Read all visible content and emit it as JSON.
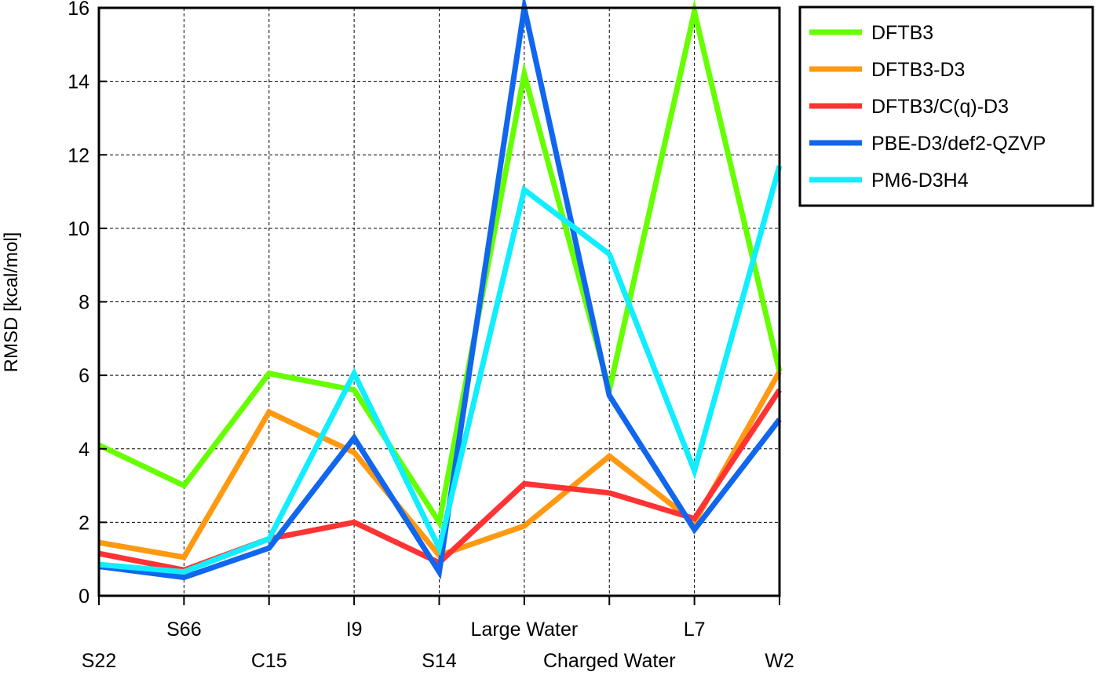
{
  "chart_data": {
    "type": "line",
    "title": "",
    "xlabel": "",
    "ylabel": "RMSD [kcal/mol]",
    "ylim": [
      0,
      16
    ],
    "yticks": [
      "0",
      "2",
      "4",
      "6",
      "8",
      "10",
      "12",
      "14",
      "16"
    ],
    "grid": true,
    "legend_position": "outside-top-right",
    "categories": [
      "S22",
      "S66",
      "C15",
      "I9",
      "S14",
      "Large Water",
      "Charged Water",
      "L7",
      "W2"
    ],
    "series": [
      {
        "name": "DFTB3",
        "color": "#66ff00",
        "values": [
          4.1,
          3.0,
          6.05,
          5.6,
          2.0,
          14.2,
          5.6,
          15.9,
          6.1
        ]
      },
      {
        "name": "DFTB3-D3",
        "color": "#ff9911",
        "values": [
          1.45,
          1.05,
          5.0,
          3.9,
          1.1,
          1.9,
          3.8,
          2.0,
          6.1
        ]
      },
      {
        "name": "DFTB3/C(q)-D3",
        "color": "#ff3333",
        "values": [
          1.15,
          0.7,
          1.55,
          2.0,
          0.9,
          3.05,
          2.8,
          2.1,
          5.6
        ]
      },
      {
        "name": "PBE-D3/def2-QZVP",
        "color": "#1166ee",
        "values": [
          0.8,
          0.5,
          1.3,
          4.3,
          0.65,
          16.0,
          5.45,
          1.8,
          4.8
        ]
      },
      {
        "name": "PM6-D3H4",
        "color": "#11eeff",
        "values": [
          0.85,
          0.65,
          1.55,
          6.05,
          1.3,
          11.05,
          9.3,
          3.4,
          11.7
        ]
      }
    ]
  }
}
